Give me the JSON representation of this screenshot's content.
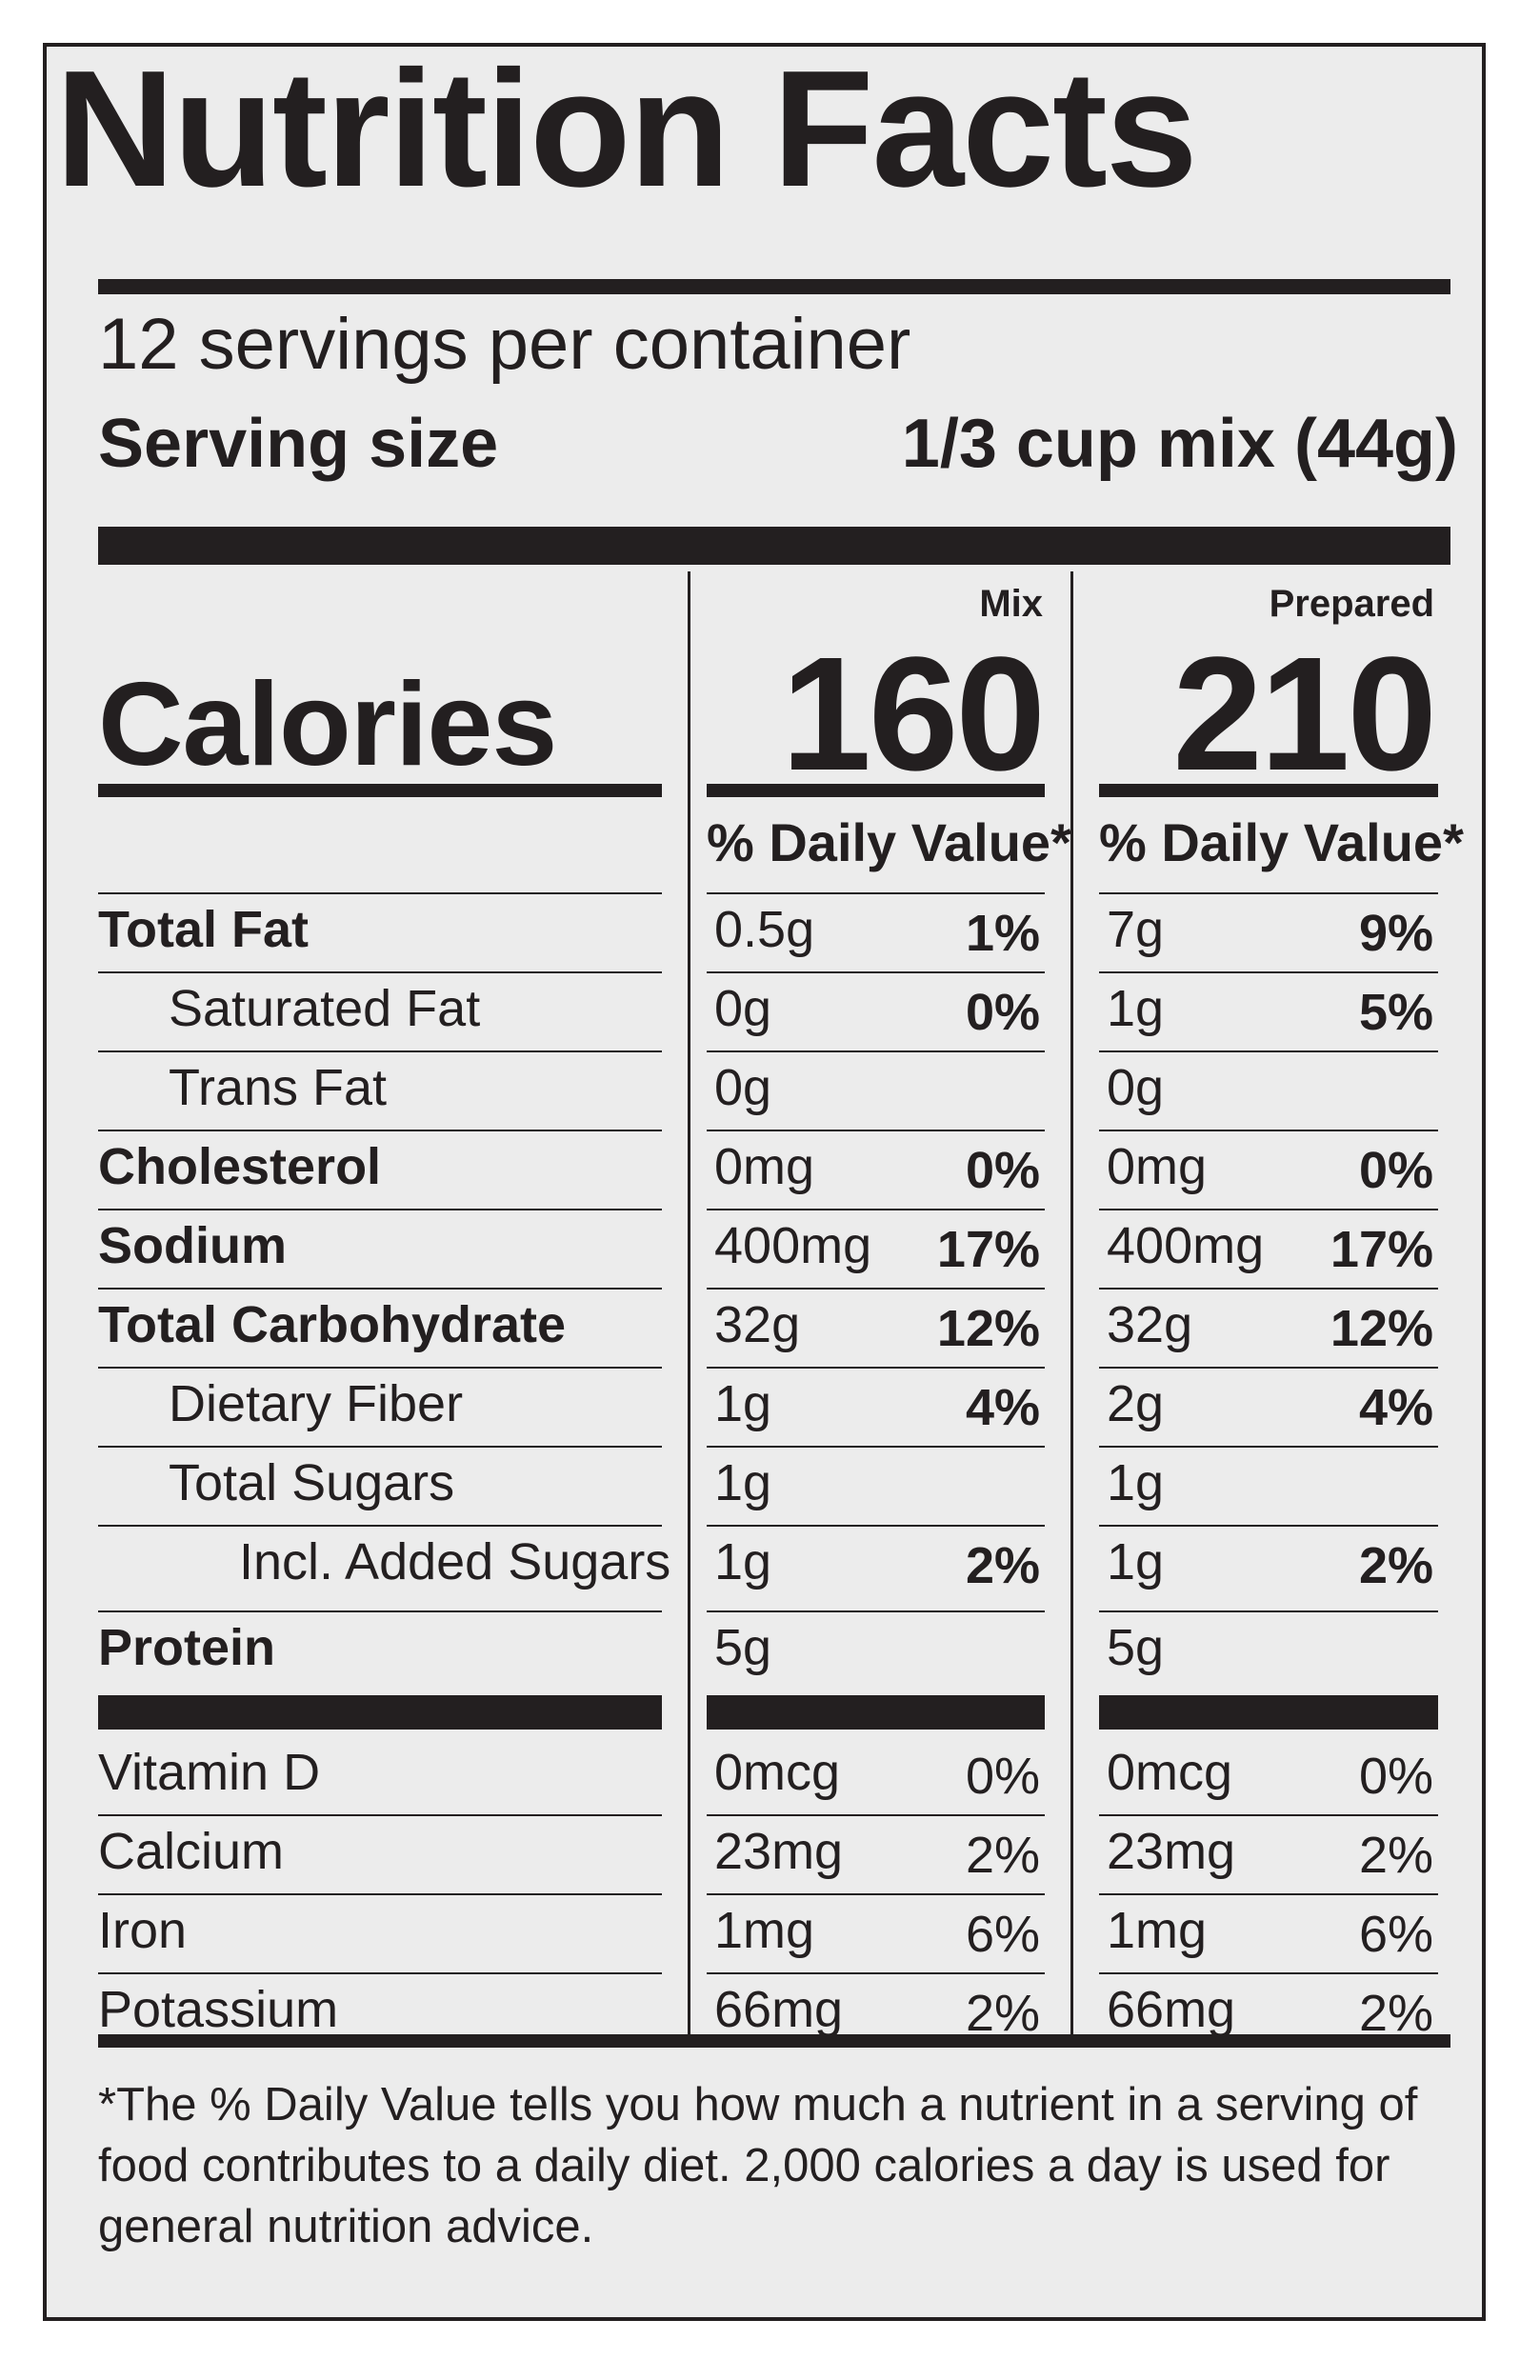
{
  "title": "Nutrition Facts",
  "servings_per_container": "12 servings per container",
  "serving_size_label": "Serving size",
  "serving_size_value": "1/3 cup mix (44g)",
  "calories_label": "Calories",
  "columns": [
    {
      "header": "Mix",
      "calories": "160",
      "dv_header": "% Daily Value*"
    },
    {
      "header": "Prepared",
      "calories": "210",
      "dv_header": "% Daily Value*"
    }
  ],
  "nutrients": [
    {
      "name": "Total Fat",
      "bold": true,
      "indent": 0,
      "mix_amt": "0.5g",
      "mix_dv": "1%",
      "prep_amt": "7g",
      "prep_dv": "9%"
    },
    {
      "name": "Saturated Fat",
      "bold": false,
      "indent": 1,
      "mix_amt": "0g",
      "mix_dv": "0%",
      "prep_amt": "1g",
      "prep_dv": "5%"
    },
    {
      "name": "Trans Fat",
      "bold": false,
      "indent": 1,
      "mix_amt": "0g",
      "mix_dv": "",
      "prep_amt": "0g",
      "prep_dv": ""
    },
    {
      "name": "Cholesterol",
      "bold": true,
      "indent": 0,
      "mix_amt": "0mg",
      "mix_dv": "0%",
      "prep_amt": "0mg",
      "prep_dv": "0%"
    },
    {
      "name": "Sodium",
      "bold": true,
      "indent": 0,
      "mix_amt": "400mg",
      "mix_dv": "17%",
      "prep_amt": "400mg",
      "prep_dv": "17%"
    },
    {
      "name": "Total Carbohydrate",
      "bold": true,
      "indent": 0,
      "mix_amt": "32g",
      "mix_dv": "12%",
      "prep_amt": "32g",
      "prep_dv": "12%"
    },
    {
      "name": "Dietary Fiber",
      "bold": false,
      "indent": 1,
      "mix_amt": "1g",
      "mix_dv": "4%",
      "prep_amt": "2g",
      "prep_dv": "4%"
    },
    {
      "name": "Total Sugars",
      "bold": false,
      "indent": 1,
      "mix_amt": "1g",
      "mix_dv": "",
      "prep_amt": "1g",
      "prep_dv": ""
    },
    {
      "name": "Incl. Added Sugars",
      "bold": false,
      "indent": 2,
      "mix_amt": "1g",
      "mix_dv": "2%",
      "prep_amt": "1g",
      "prep_dv": "2%"
    },
    {
      "name": "Protein",
      "bold": true,
      "indent": 0,
      "mix_amt": "5g",
      "mix_dv": "",
      "prep_amt": "5g",
      "prep_dv": ""
    }
  ],
  "vitamins": [
    {
      "name": "Vitamin D",
      "mix_amt": "0mcg",
      "mix_dv": "0%",
      "prep_amt": "0mcg",
      "prep_dv": "0%"
    },
    {
      "name": "Calcium",
      "mix_amt": "23mg",
      "mix_dv": "2%",
      "prep_amt": "23mg",
      "prep_dv": "2%"
    },
    {
      "name": "Iron",
      "mix_amt": "1mg",
      "mix_dv": "6%",
      "prep_amt": "1mg",
      "prep_dv": "6%"
    },
    {
      "name": "Potassium",
      "mix_amt": "66mg",
      "mix_dv": "2%",
      "prep_amt": "66mg",
      "prep_dv": "2%"
    }
  ],
  "footnote": "*The % Daily Value tells you how much a nutrient in a serving of food contributes to a daily diet. 2,000 calories a day is used for general nutrition advice."
}
